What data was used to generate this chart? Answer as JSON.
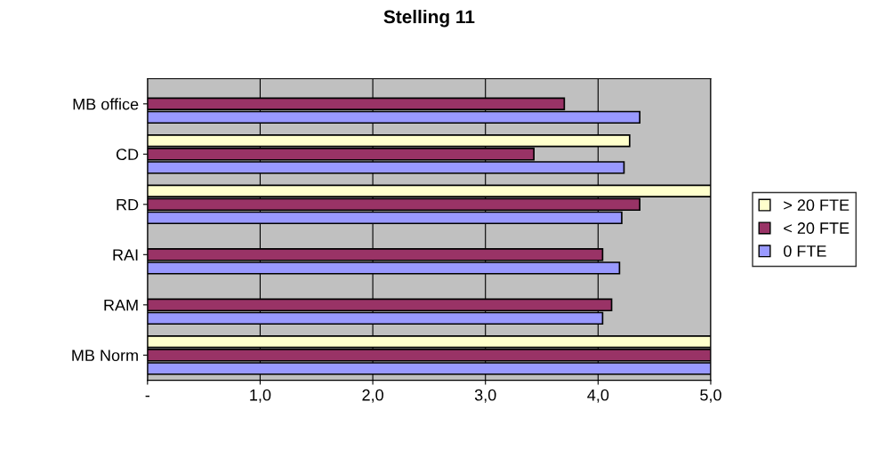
{
  "chart_data": {
    "type": "bar",
    "orientation": "horizontal",
    "title": "Stelling 11",
    "categories": [
      "MB office",
      "CD",
      "RD",
      "RAI",
      "RAM",
      "MB Norm"
    ],
    "series": [
      {
        "name": "> 20 FTE",
        "color": "#ffffcc",
        "values": [
          null,
          4.28,
          5.0,
          null,
          null,
          5.0
        ]
      },
      {
        "name": "< 20 FTE",
        "color": "#993366",
        "values": [
          3.7,
          3.43,
          4.37,
          4.04,
          4.12,
          5.0
        ]
      },
      {
        "name": "0 FTE",
        "color": "#9999ff",
        "values": [
          4.37,
          4.23,
          4.21,
          4.19,
          4.04,
          5.0
        ]
      }
    ],
    "xlim": [
      0,
      5
    ],
    "xticks": [
      {
        "value": 0,
        "label": "-"
      },
      {
        "value": 1,
        "label": "1,0"
      },
      {
        "value": 2,
        "label": "2,0"
      },
      {
        "value": 3,
        "label": "3,0"
      },
      {
        "value": 4,
        "label": "4,0"
      },
      {
        "value": 5,
        "label": "5,0"
      }
    ],
    "grid": "x",
    "legend": "right"
  }
}
